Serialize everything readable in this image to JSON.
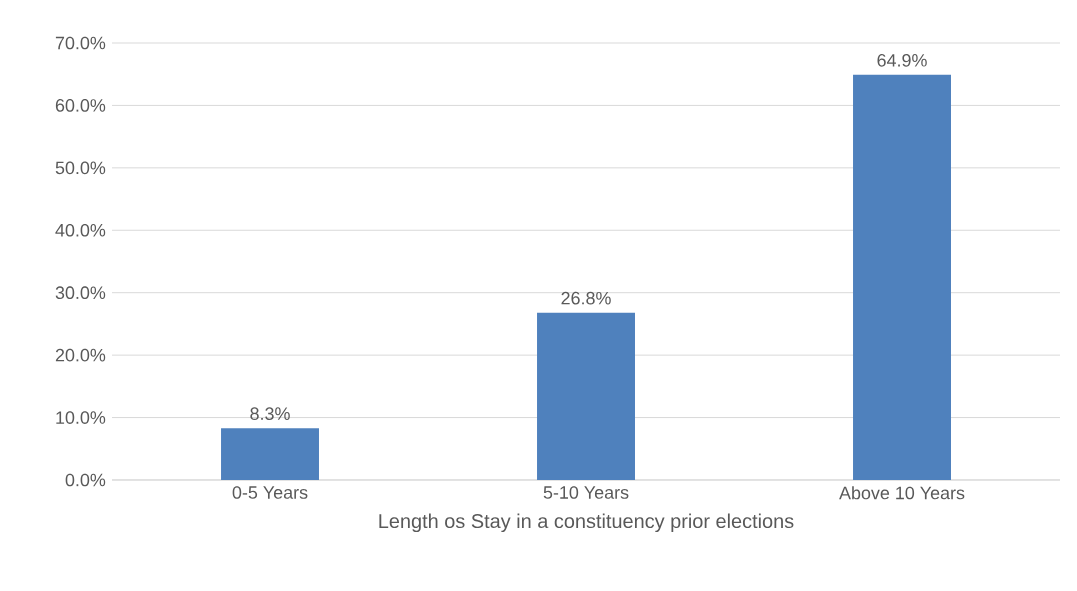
{
  "chart_data": {
    "type": "bar",
    "xlabel": "Length os Stay in a constituency prior elections",
    "categories": [
      "0-5 Years",
      "5-10 Years",
      "Above 10 Years"
    ],
    "values": [
      8.3,
      26.8,
      64.9
    ],
    "value_labels": [
      "8.3%",
      "26.8%",
      "64.9%"
    ],
    "color": "#4f81bd",
    "ylim": [
      0,
      70
    ],
    "yticks": [
      {
        "value": 0,
        "label": "0.0%"
      },
      {
        "value": 10,
        "label": "10.0%"
      },
      {
        "value": 20,
        "label": "20.0%"
      },
      {
        "value": 30,
        "label": "30.0%"
      },
      {
        "value": 40,
        "label": "40.0%"
      },
      {
        "value": 50,
        "label": "50.0%"
      },
      {
        "value": 60,
        "label": "60.0%"
      },
      {
        "value": 70,
        "label": "70.0%"
      }
    ],
    "grid": "y"
  }
}
